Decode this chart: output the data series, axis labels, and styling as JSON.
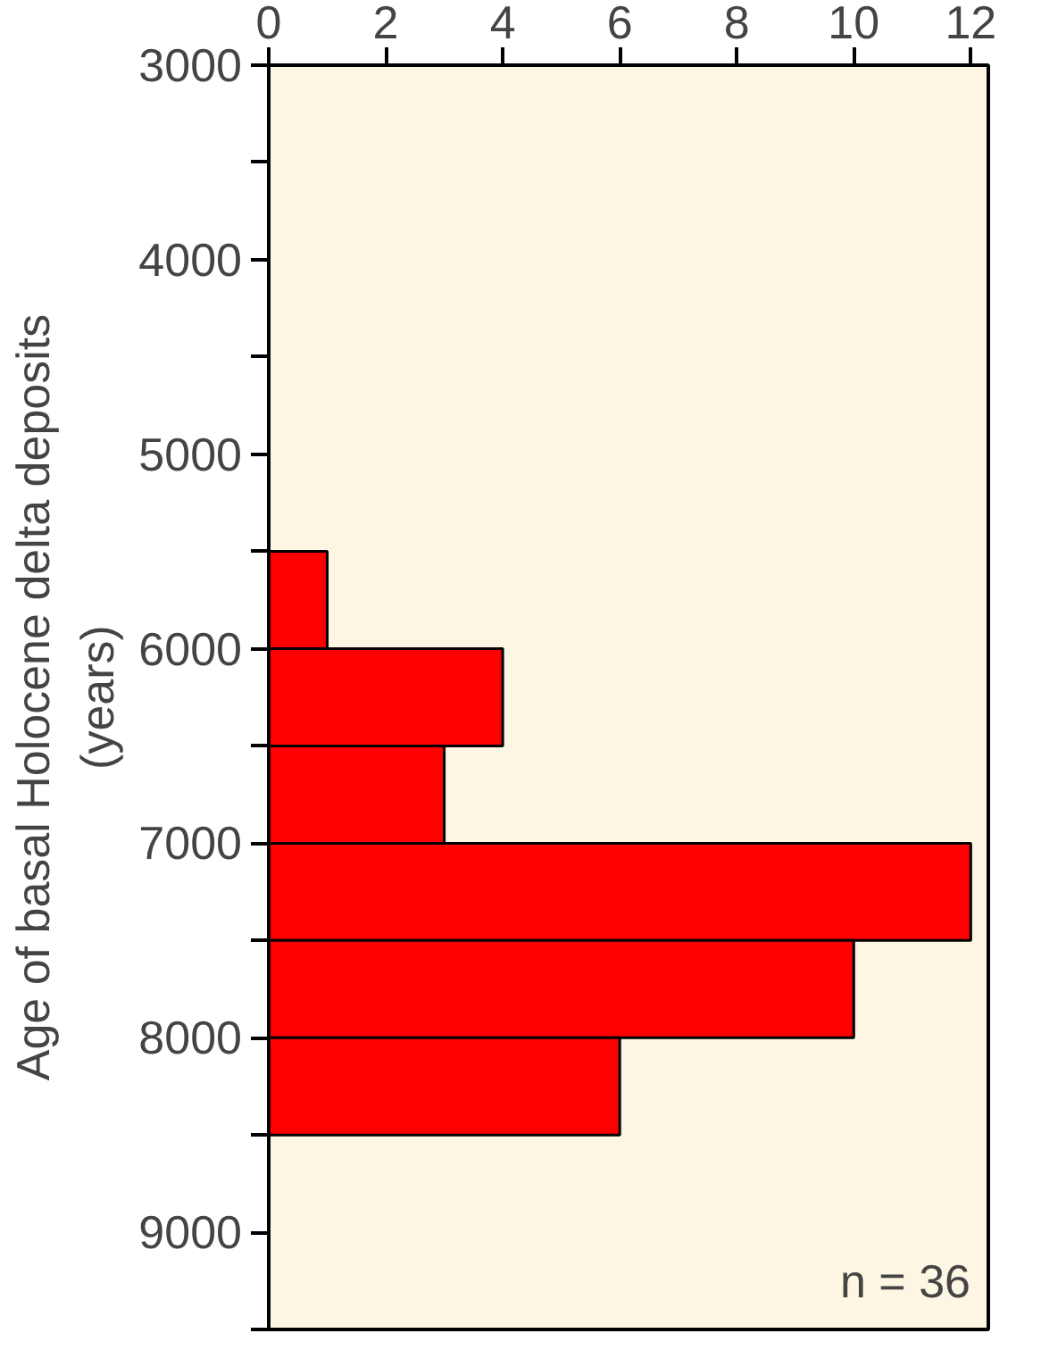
{
  "chart_data": {
    "type": "histogram",
    "orientation": "horizontal",
    "ylabel": "Age of basal Holocene delta deposits\n(years)",
    "bins": [
      5500,
      6000,
      6500,
      7000,
      7500,
      8000,
      8500
    ],
    "values": [
      1,
      4,
      3,
      12,
      10,
      6
    ],
    "color": "#ff0000",
    "xlim": [
      0,
      12.3
    ],
    "xticks": [
      0,
      2,
      4,
      6,
      8,
      10,
      12
    ],
    "ylim": [
      9500,
      3000
    ],
    "yticks": [
      3000,
      {
        "value": 3500,
        "label": null
      },
      4000,
      {
        "value": 4500,
        "label": null
      },
      5000,
      {
        "value": 5500,
        "label": null
      },
      6000,
      {
        "value": 6500,
        "label": null
      },
      7000,
      {
        "value": 7500,
        "label": null
      },
      8000,
      {
        "value": 8500,
        "label": null
      },
      9000,
      {
        "value": 9500,
        "label": null
      }
    ],
    "annotations": [
      "n = 36"
    ],
    "grid": false
  }
}
